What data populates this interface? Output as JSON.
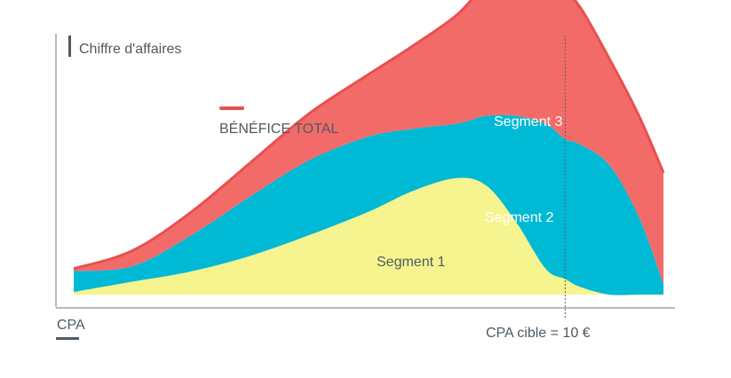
{
  "chart_data": {
    "type": "area",
    "title": "",
    "ylabel": "Chiffre d'affaires",
    "xlabel": "CPA",
    "legend": {
      "label": "BÉNÉFICE TOTAL",
      "color": "#e8504f",
      "position": "top-left"
    },
    "annotation": {
      "label": "CPA cible = 10 €",
      "x": 10
    },
    "xlim": [
      0,
      12
    ],
    "ylim": [
      0,
      10
    ],
    "grid": false,
    "x": [
      0,
      1.2,
      2.4,
      3.6,
      4.8,
      6.0,
      6.9,
      7.8,
      8.4,
      9.0,
      9.6,
      10.0,
      10.3,
      10.9,
      11.5,
      12.0
    ],
    "series": [
      {
        "name": "Segment 1",
        "color": "#f6f48e",
        "values": [
          0.1,
          0.5,
          0.9,
          1.5,
          2.3,
          3.2,
          4.0,
          4.5,
          4.2,
          2.8,
          1.0,
          0.6,
          0.3,
          0.0,
          0.0,
          0.0
        ]
      },
      {
        "name": "Segment 2",
        "color": "#00b9d4",
        "values": [
          0.8,
          0.6,
          1.4,
          2.3,
          2.9,
          2.9,
          2.4,
          2.1,
          2.7,
          4.1,
          5.6,
          5.4,
          5.5,
          5.0,
          3.0,
          0.4
        ]
      },
      {
        "name": "Segment 3",
        "color": "#f26b69",
        "values": [
          0.1,
          0.6,
          0.9,
          1.3,
          1.8,
          2.4,
          3.2,
          4.2,
          5.1,
          5.6,
          4.9,
          5.6,
          5.3,
          4.1,
          3.9,
          4.3
        ]
      }
    ]
  }
}
